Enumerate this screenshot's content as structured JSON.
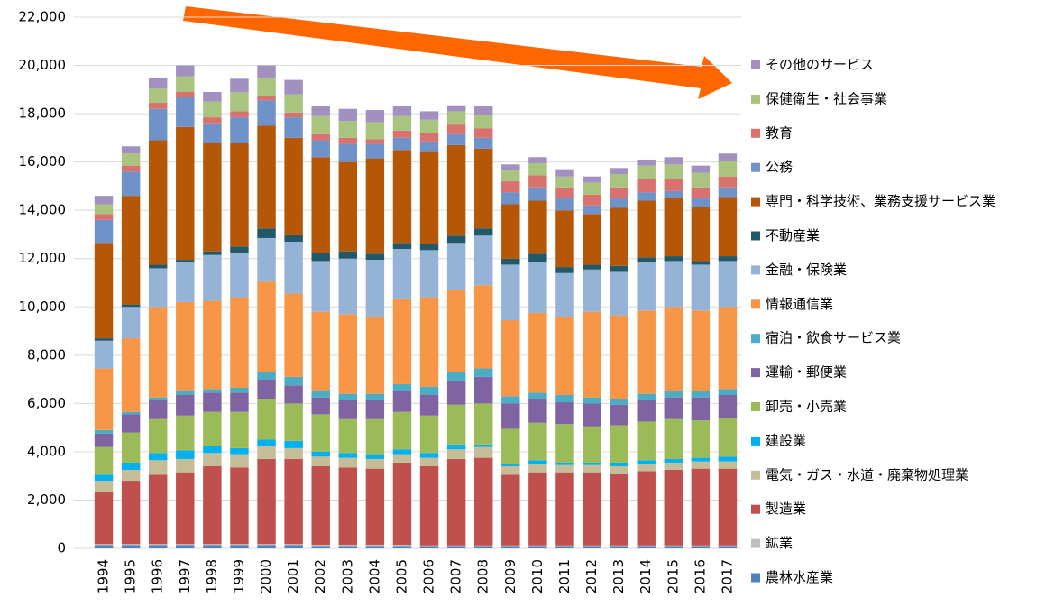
{
  "chart_data": {
    "type": "stacked_bar",
    "categories": [
      "1994",
      "1995",
      "1996",
      "1997",
      "1998",
      "1999",
      "2000",
      "2001",
      "2002",
      "2003",
      "2004",
      "2005",
      "2006",
      "2007",
      "2008",
      "2009",
      "2010",
      "2011",
      "2012",
      "2013",
      "2014",
      "2015",
      "2016",
      "2017"
    ],
    "ylim": [
      0,
      22000
    ],
    "yticks": [
      {
        "value": 0,
        "label": "0"
      },
      {
        "value": 2000,
        "label": "2,000"
      },
      {
        "value": 4000,
        "label": "4,000"
      },
      {
        "value": 6000,
        "label": "6,000"
      },
      {
        "value": 8000,
        "label": "8,000"
      },
      {
        "value": 10000,
        "label": "10,000"
      },
      {
        "value": 12000,
        "label": "12,000"
      },
      {
        "value": 14000,
        "label": "14,000"
      },
      {
        "value": 16000,
        "label": "16,000"
      },
      {
        "value": 18000,
        "label": "18,000"
      },
      {
        "value": 20000,
        "label": "20,000"
      },
      {
        "value": 22000,
        "label": "22,000"
      }
    ],
    "grid": true,
    "legend": "right",
    "series": [
      {
        "name": "農林水産業",
        "color": "#4f81bd",
        "values": [
          130,
          130,
          130,
          130,
          130,
          130,
          130,
          130,
          100,
          100,
          100,
          100,
          100,
          100,
          100,
          100,
          100,
          100,
          100,
          100,
          100,
          100,
          100,
          100
        ]
      },
      {
        "name": "鉱業",
        "color": "#bfbfbf",
        "values": [
          50,
          50,
          50,
          50,
          50,
          50,
          50,
          50,
          50,
          50,
          50,
          50,
          20,
          20,
          20,
          20,
          20,
          20,
          20,
          20,
          20,
          20,
          20,
          20
        ]
      },
      {
        "name": "製造業",
        "color": "#c0504d",
        "values": [
          2170,
          2620,
          2870,
          2970,
          3220,
          3170,
          3520,
          3520,
          3250,
          3200,
          3150,
          3400,
          3280,
          3580,
          3630,
          2930,
          3030,
          3030,
          3030,
          2980,
          3080,
          3130,
          3180,
          3180
        ]
      },
      {
        "name": "電気・ガス・水道・廃棄物処理業",
        "color": "#c4bd97",
        "values": [
          450,
          450,
          600,
          550,
          550,
          550,
          550,
          450,
          400,
          400,
          400,
          350,
          350,
          400,
          450,
          350,
          350,
          300,
          300,
          300,
          300,
          300,
          300,
          300
        ]
      },
      {
        "name": "建設業",
        "color": "#00b0f0",
        "values": [
          250,
          300,
          300,
          350,
          300,
          250,
          250,
          300,
          200,
          200,
          200,
          200,
          200,
          200,
          100,
          100,
          150,
          100,
          100,
          150,
          150,
          150,
          150,
          200
        ]
      },
      {
        "name": "卸売・小売業",
        "color": "#9bbb59",
        "values": [
          1150,
          1250,
          1400,
          1450,
          1400,
          1500,
          1700,
          1550,
          1550,
          1400,
          1450,
          1550,
          1550,
          1650,
          1700,
          1450,
          1550,
          1600,
          1500,
          1550,
          1600,
          1650,
          1550,
          1600
        ]
      },
      {
        "name": "運輸・郵便業",
        "color": "#8064a2",
        "values": [
          550,
          750,
          800,
          850,
          800,
          800,
          800,
          750,
          700,
          800,
          800,
          850,
          850,
          1000,
          1100,
          1050,
          1000,
          900,
          950,
          850,
          900,
          900,
          950,
          950
        ]
      },
      {
        "name": "宿泊・飲食サービス業",
        "color": "#4bacc6",
        "values": [
          150,
          100,
          100,
          200,
          150,
          200,
          300,
          350,
          300,
          250,
          250,
          300,
          350,
          350,
          350,
          300,
          250,
          300,
          250,
          250,
          250,
          250,
          250,
          250
        ]
      },
      {
        "name": "情報通信業",
        "color": "#f79646",
        "values": [
          2550,
          3050,
          3750,
          3650,
          3650,
          3750,
          3750,
          3450,
          3250,
          3300,
          3200,
          3550,
          3700,
          3400,
          3450,
          3150,
          3300,
          3250,
          3550,
          3450,
          3450,
          3500,
          3350,
          3400
        ]
      },
      {
        "name": "金融・保険業",
        "color": "#95b3d7",
        "values": [
          1150,
          1300,
          1600,
          1650,
          1900,
          1850,
          1800,
          2150,
          2100,
          2300,
          2350,
          2050,
          1950,
          1950,
          2050,
          2300,
          2100,
          1800,
          1750,
          1800,
          2000,
          1900,
          1900,
          1900
        ]
      },
      {
        "name": "不動産業",
        "color": "#215968",
        "values": [
          100,
          100,
          150,
          100,
          150,
          250,
          400,
          300,
          350,
          300,
          250,
          250,
          250,
          300,
          300,
          250,
          350,
          250,
          200,
          250,
          200,
          200,
          150,
          200
        ]
      },
      {
        "name": "専門・科学技術、業務支援サービス業",
        "color": "#b65708",
        "values": [
          3950,
          4500,
          5150,
          5500,
          4500,
          4300,
          4250,
          4000,
          3950,
          3700,
          3950,
          3850,
          3850,
          3750,
          3300,
          2250,
          2200,
          2350,
          2100,
          2400,
          2350,
          2400,
          2250,
          2450
        ]
      },
      {
        "name": "公務",
        "color": "#6f92c8",
        "values": [
          950,
          1000,
          1300,
          1250,
          800,
          1050,
          1050,
          850,
          700,
          750,
          600,
          500,
          400,
          450,
          450,
          500,
          550,
          500,
          350,
          400,
          350,
          300,
          350,
          400
        ]
      },
      {
        "name": "教育",
        "color": "#d9726e",
        "values": [
          250,
          250,
          250,
          200,
          250,
          250,
          200,
          200,
          250,
          250,
          200,
          300,
          350,
          400,
          400,
          450,
          500,
          450,
          450,
          450,
          550,
          500,
          450,
          450
        ]
      },
      {
        "name": "保健衛生・社会事業",
        "color": "#a9c47f",
        "values": [
          400,
          500,
          600,
          650,
          650,
          800,
          750,
          750,
          750,
          700,
          700,
          600,
          550,
          550,
          550,
          450,
          500,
          450,
          500,
          550,
          550,
          600,
          600,
          650
        ]
      },
      {
        "name": "その他のサービス",
        "color": "#a190c0",
        "values": [
          350,
          300,
          450,
          450,
          400,
          550,
          500,
          600,
          400,
          500,
          500,
          400,
          350,
          250,
          350,
          250,
          250,
          300,
          250,
          250,
          250,
          300,
          300,
          300
        ]
      }
    ]
  }
}
